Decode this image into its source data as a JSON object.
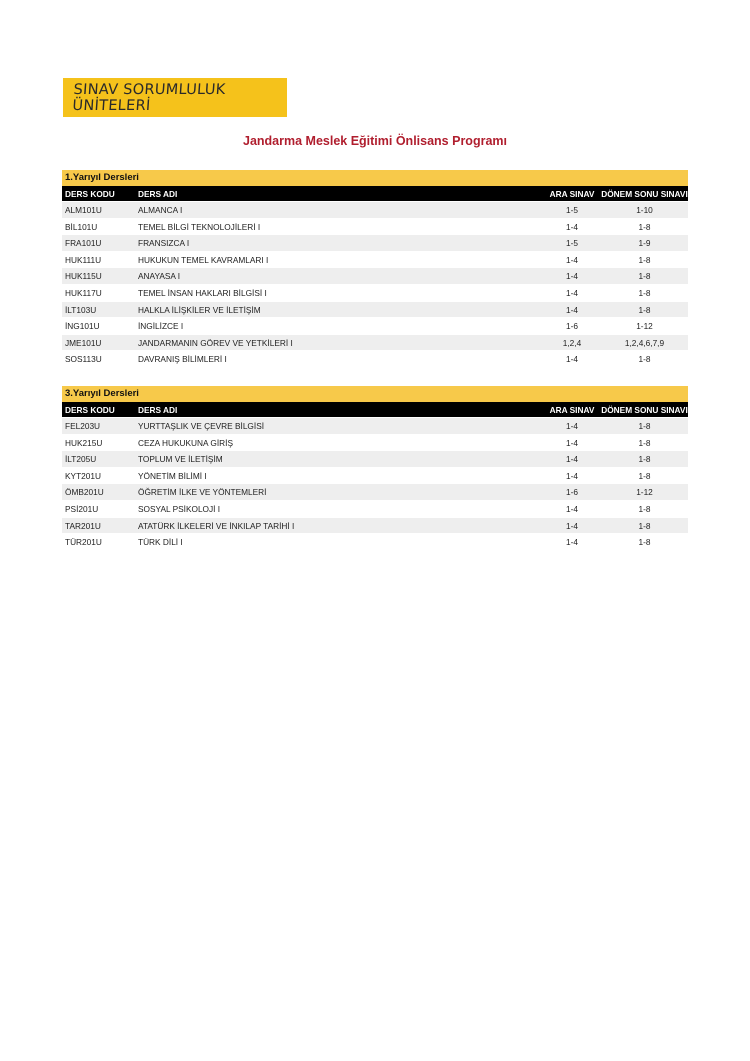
{
  "banner": {
    "text": "SINAV SORUMLULUK ÜNİTELERİ",
    "color": "#f5c21b"
  },
  "title": "Jandarma Meslek Eğitimi Önlisans Programı",
  "title_color": "#b01e2e",
  "columns": {
    "code": "DERS KODU",
    "name": "DERS ADI",
    "mid": "ARA SINAV",
    "final": "DÖNEM SONU SINAVI"
  },
  "sections": [
    {
      "heading": "1.Yarıyıl Dersleri",
      "rows": [
        {
          "code": "ALM101U",
          "name": "ALMANCA I",
          "mid": "1-5",
          "final": "1-10"
        },
        {
          "code": "BİL101U",
          "name": "TEMEL BİLGİ TEKNOLOJİLERİ I",
          "mid": "1-4",
          "final": "1-8"
        },
        {
          "code": "FRA101U",
          "name": "FRANSIZCA I",
          "mid": "1-5",
          "final": "1-9"
        },
        {
          "code": "HUK111U",
          "name": "HUKUKUN TEMEL KAVRAMLARI I",
          "mid": "1-4",
          "final": "1-8"
        },
        {
          "code": "HUK115U",
          "name": "ANAYASA I",
          "mid": "1-4",
          "final": "1-8"
        },
        {
          "code": "HUK117U",
          "name": "TEMEL İNSAN HAKLARI BİLGİSİ I",
          "mid": "1-4",
          "final": "1-8"
        },
        {
          "code": "İLT103U",
          "name": "HALKLA İLİŞKİLER VE İLETİŞİM",
          "mid": "1-4",
          "final": "1-8"
        },
        {
          "code": "İNG101U",
          "name": "İNGİLİZCE I",
          "mid": "1-6",
          "final": "1-12"
        },
        {
          "code": "JME101U",
          "name": "JANDARMANIN GÖREV VE YETKİLERİ I",
          "mid": "1,2,4",
          "final": "1,2,4,6,7,9"
        },
        {
          "code": "SOS113U",
          "name": "DAVRANIŞ BİLİMLERİ I",
          "mid": "1-4",
          "final": "1-8"
        }
      ]
    },
    {
      "heading": "3.Yarıyıl Dersleri",
      "rows": [
        {
          "code": "FEL203U",
          "name": "YURTTAŞLIK VE ÇEVRE BİLGİSİ",
          "mid": "1-4",
          "final": "1-8"
        },
        {
          "code": "HUK215U",
          "name": "CEZA HUKUKUNA GİRİŞ",
          "mid": "1-4",
          "final": "1-8"
        },
        {
          "code": "İLT205U",
          "name": "TOPLUM VE İLETİŞİM",
          "mid": "1-4",
          "final": "1-8"
        },
        {
          "code": "KYT201U",
          "name": "YÖNETİM BİLİMİ I",
          "mid": "1-4",
          "final": "1-8"
        },
        {
          "code": "ÖMB201U",
          "name": "ÖĞRETİM İLKE VE YÖNTEMLERİ",
          "mid": "1-6",
          "final": "1-12"
        },
        {
          "code": "PSİ201U",
          "name": "SOSYAL PSİKOLOJİ I",
          "mid": "1-4",
          "final": "1-8"
        },
        {
          "code": "TAR201U",
          "name": "ATATÜRK İLKELERİ VE İNKILAP TARİHİ I",
          "mid": "1-4",
          "final": "1-8"
        },
        {
          "code": "TÜR201U",
          "name": "TÜRK DİLİ I",
          "mid": "1-4",
          "final": "1-8"
        }
      ]
    }
  ]
}
